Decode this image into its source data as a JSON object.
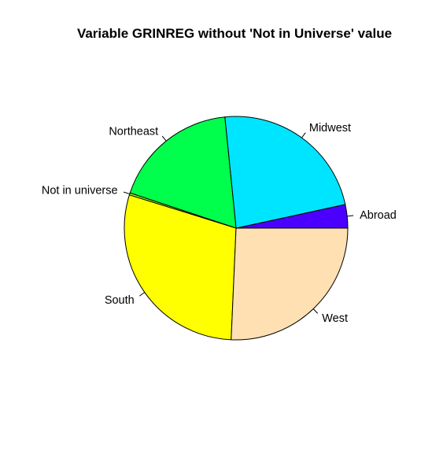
{
  "chart_data": {
    "type": "pie",
    "title": "Variable GRINREG without 'Not in Universe' value",
    "start_angle_deg": 0,
    "direction": "counterclockwise",
    "border_color": "#000000",
    "slices": [
      {
        "label": "Abroad",
        "value": 3.4,
        "color": "#4B00FF"
      },
      {
        "label": "Midwest",
        "value": 23.2,
        "color": "#00E5FF"
      },
      {
        "label": "Northeast",
        "value": 18.3,
        "color": "#00FF4D"
      },
      {
        "label": "Not in universe",
        "value": 0.3,
        "color": "#80FF00"
      },
      {
        "label": "South",
        "value": 29.1,
        "color": "#FFFF00"
      },
      {
        "label": "West",
        "value": 25.7,
        "color": "#FFE0B3"
      }
    ]
  }
}
